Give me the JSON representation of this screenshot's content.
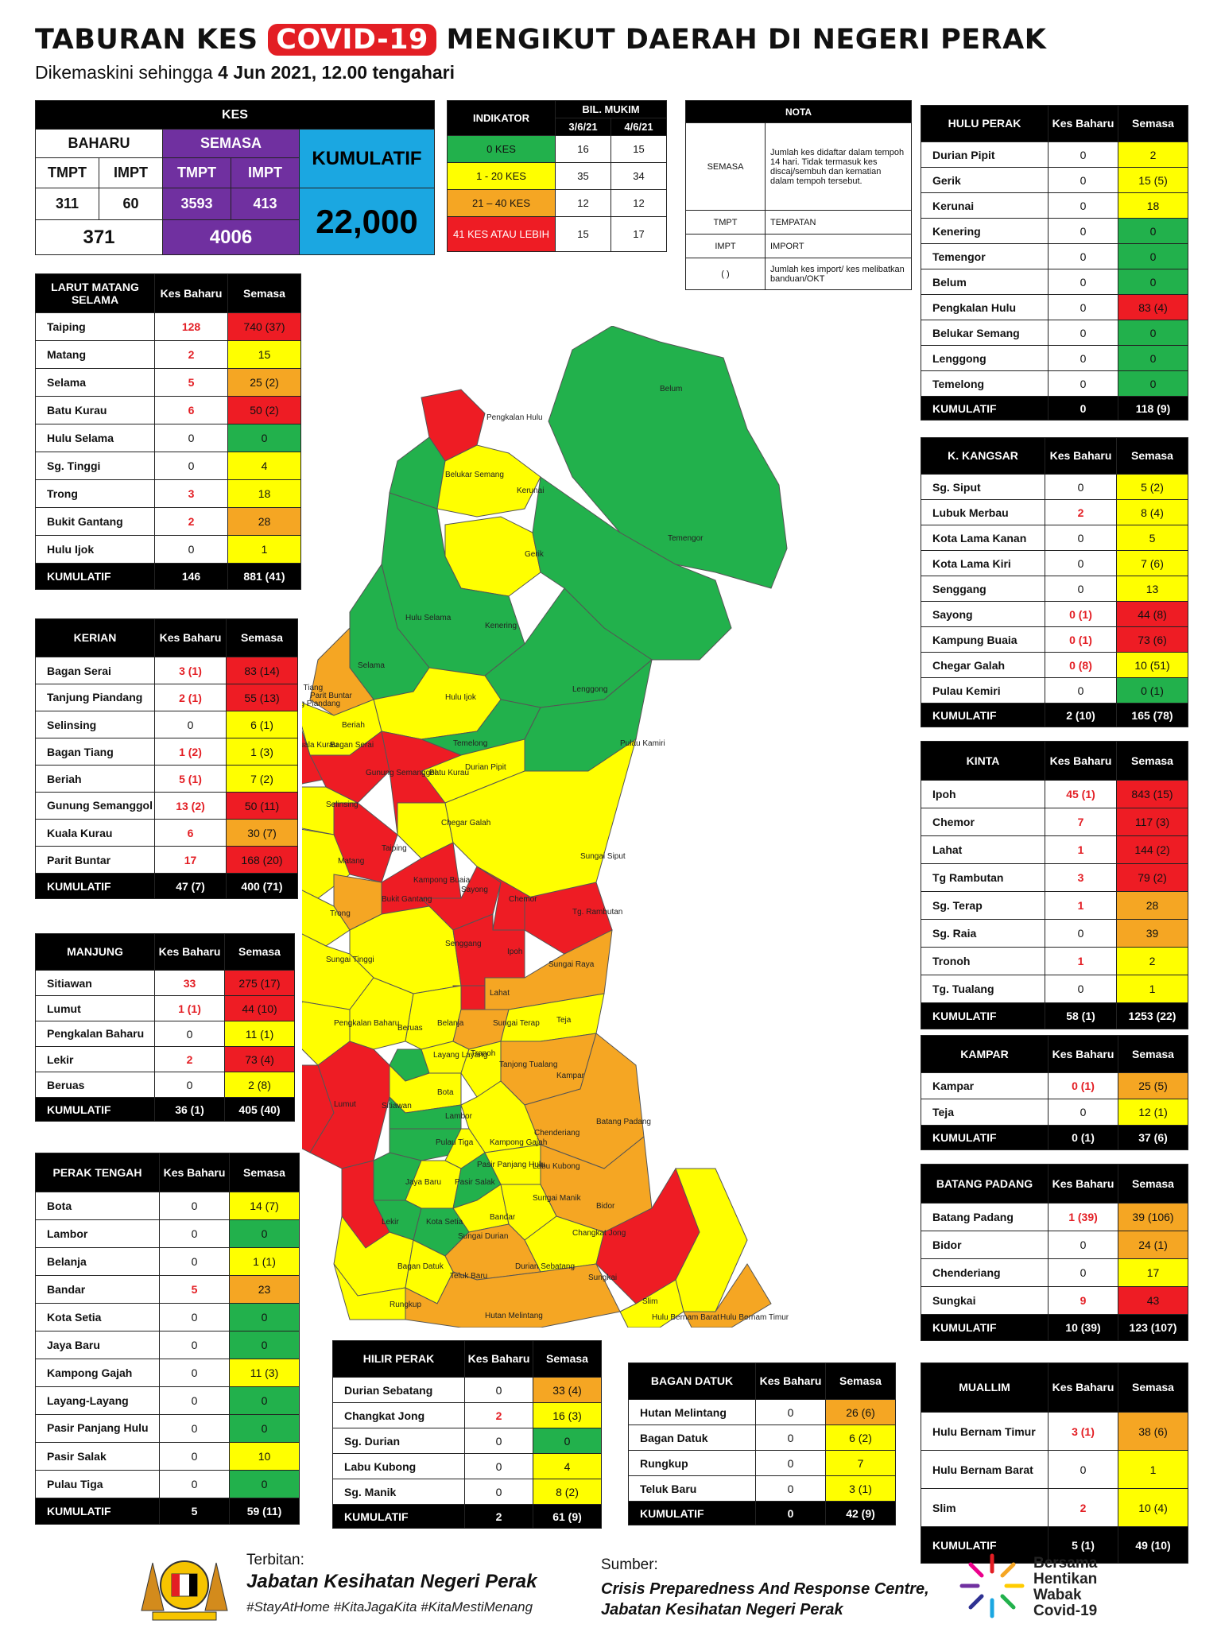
{
  "title": {
    "pre": "TABURAN KES ",
    "highlight": "COVID-19",
    "post": " MENGIKUT DAERAH DI NEGERI PERAK"
  },
  "subtitle": {
    "pre": "Dikemaskini sehingga ",
    "date": "4 Jun 2021, 12.00 tengahari"
  },
  "colors": {
    "green": "#22b14c",
    "yellow": "#ffff00",
    "orange": "#f5a623",
    "red": "#ee1c24",
    "purple": "#7030a0",
    "blue": "#1ba7e1"
  },
  "kes": {
    "title": "KES",
    "baharu": "BAHARU",
    "semasa": "SEMASA",
    "kumulatif_label": "KUMULATIF",
    "tmpt": "TMPT",
    "impt": "IMPT",
    "baharu_tmpt": "311",
    "baharu_impt": "60",
    "semasa_tmpt": "3593",
    "semasa_impt": "413",
    "baharu_total": "371",
    "semasa_total": "4006",
    "kumulatif": "22,000"
  },
  "indikator": {
    "title": "INDIKATOR",
    "bil": "BIL. MUKIM",
    "d1": "3/6/21",
    "d2": "4/6/21",
    "rows": [
      {
        "label": "0 KES",
        "a": "16",
        "b": "15"
      },
      {
        "label": "1 - 20 KES",
        "a": "35",
        "b": "34"
      },
      {
        "label": "21 – 40 KES",
        "a": "12",
        "b": "12"
      },
      {
        "label": "41 KES ATAU LEBIH",
        "a": "15",
        "b": "17"
      }
    ]
  },
  "nota": {
    "title": "NOTA",
    "rows": [
      {
        "k": "SEMASA",
        "v": "Jumlah kes didaftar dalam tempoh 14 hari. Tidak termasuk kes discaj/sembuh dan kematian dalam tempoh tersebut."
      },
      {
        "k": "TMPT",
        "v": "TEMPATAN"
      },
      {
        "k": "IMPT",
        "v": "IMPORT"
      },
      {
        "k": "( )",
        "v": "Jumlah kes import/ kes melibatkan banduan/OKT"
      }
    ]
  },
  "col": {
    "kes_baharu": "Kes Baharu",
    "semasa": "Semasa",
    "kumulatif": "KUMULATIF"
  },
  "districts": {
    "larut": {
      "name": "LARUT MATANG SELAMA",
      "rows": [
        {
          "n": "Taiping",
          "b": "128",
          "s": "740 (37)"
        },
        {
          "n": "Matang",
          "b": "2",
          "s": "15"
        },
        {
          "n": "Selama",
          "b": "5",
          "s": "25 (2)"
        },
        {
          "n": "Batu Kurau",
          "b": "6",
          "s": "50 (2)"
        },
        {
          "n": "Hulu Selama",
          "b": "0",
          "s": "0"
        },
        {
          "n": "Sg. Tinggi",
          "b": "0",
          "s": "4"
        },
        {
          "n": "Trong",
          "b": "3",
          "s": "18"
        },
        {
          "n": "Bukit Gantang",
          "b": "2",
          "s": "28"
        },
        {
          "n": "Hulu Ijok",
          "b": "0",
          "s": "1"
        }
      ],
      "kb": "146",
      "ks": "881 (41)"
    },
    "kerian": {
      "name": "KERIAN",
      "rows": [
        {
          "n": "Bagan Serai",
          "b": "3 (1)",
          "s": "83 (14)"
        },
        {
          "n": "Tanjung Piandang",
          "b": "2 (1)",
          "s": "55 (13)"
        },
        {
          "n": "Selinsing",
          "b": "0",
          "s": "6 (1)"
        },
        {
          "n": "Bagan Tiang",
          "b": "1 (2)",
          "s": "1 (3)"
        },
        {
          "n": "Beriah",
          "b": "5 (1)",
          "s": "7 (2)"
        },
        {
          "n": "Gunung Semanggol",
          "b": "13 (2)",
          "s": "50 (11)"
        },
        {
          "n": "Kuala Kurau",
          "b": "6",
          "s": "30 (7)"
        },
        {
          "n": "Parit Buntar",
          "b": "17",
          "s": "168 (20)"
        }
      ],
      "kb": "47 (7)",
      "ks": "400 (71)"
    },
    "manjung": {
      "name": "MANJUNG",
      "rows": [
        {
          "n": "Sitiawan",
          "b": "33",
          "s": "275 (17)"
        },
        {
          "n": "Lumut",
          "b": "1 (1)",
          "s": "44 (10)"
        },
        {
          "n": "Pengkalan Baharu",
          "b": "0",
          "s": "11 (1)"
        },
        {
          "n": "Lekir",
          "b": "2",
          "s": "73 (4)"
        },
        {
          "n": "Beruas",
          "b": "0",
          "s": "2 (8)"
        }
      ],
      "kb": "36 (1)",
      "ks": "405 (40)"
    },
    "perak_tengah": {
      "name": "PERAK TENGAH",
      "rows": [
        {
          "n": "Bota",
          "b": "0",
          "s": "14 (7)"
        },
        {
          "n": "Lambor",
          "b": "0",
          "s": "0"
        },
        {
          "n": "Belanja",
          "b": "0",
          "s": "1 (1)"
        },
        {
          "n": "Bandar",
          "b": "5",
          "s": "23"
        },
        {
          "n": "Kota Setia",
          "b": "0",
          "s": "0"
        },
        {
          "n": "Jaya Baru",
          "b": "0",
          "s": "0"
        },
        {
          "n": "Kampong Gajah",
          "b": "0",
          "s": "11 (3)"
        },
        {
          "n": "Layang-Layang",
          "b": "0",
          "s": "0"
        },
        {
          "n": "Pasir Panjang Hulu",
          "b": "0",
          "s": "0"
        },
        {
          "n": "Pasir Salak",
          "b": "0",
          "s": "10"
        },
        {
          "n": "Pulau Tiga",
          "b": "0",
          "s": "0"
        }
      ],
      "kb": "5",
      "ks": "59 (11)"
    },
    "hulu_perak": {
      "name": "HULU PERAK",
      "rows": [
        {
          "n": "Durian Pipit",
          "b": "0",
          "s": "2"
        },
        {
          "n": "Gerik",
          "b": "0",
          "s": "15 (5)"
        },
        {
          "n": "Kerunai",
          "b": "0",
          "s": "18"
        },
        {
          "n": "Kenering",
          "b": "0",
          "s": "0"
        },
        {
          "n": "Temengor",
          "b": "0",
          "s": "0"
        },
        {
          "n": "Belum",
          "b": "0",
          "s": "0"
        },
        {
          "n": "Pengkalan Hulu",
          "b": "0",
          "s": "83 (4)"
        },
        {
          "n": "Belukar Semang",
          "b": "0",
          "s": "0"
        },
        {
          "n": "Lenggong",
          "b": "0",
          "s": "0"
        },
        {
          "n": "Temelong",
          "b": "0",
          "s": "0"
        }
      ],
      "kb": "0",
      "ks": "118 (9)"
    },
    "kangsar": {
      "name": "K. KANGSAR",
      "rows": [
        {
          "n": "Sg. Siput",
          "b": "0",
          "s": "5 (2)"
        },
        {
          "n": "Lubuk Merbau",
          "b": "2",
          "s": "8 (4)"
        },
        {
          "n": "Kota Lama Kanan",
          "b": "0",
          "s": "5"
        },
        {
          "n": "Kota Lama Kiri",
          "b": "0",
          "s": "7 (6)"
        },
        {
          "n": "Senggang",
          "b": "0",
          "s": "13"
        },
        {
          "n": "Sayong",
          "b": "0 (1)",
          "s": "44 (8)"
        },
        {
          "n": "Kampung Buaia",
          "b": "0 (1)",
          "s": "73 (6)"
        },
        {
          "n": "Chegar Galah",
          "b": "0 (8)",
          "s": "10 (51)"
        },
        {
          "n": "Pulau Kemiri",
          "b": "0",
          "s": "0 (1)"
        }
      ],
      "kb": "2 (10)",
      "ks": "165 (78)"
    },
    "kinta": {
      "name": "KINTA",
      "rows": [
        {
          "n": "Ipoh",
          "b": "45 (1)",
          "s": "843 (15)"
        },
        {
          "n": "Chemor",
          "b": "7",
          "s": "117 (3)"
        },
        {
          "n": "Lahat",
          "b": "1",
          "s": "144 (2)"
        },
        {
          "n": "Tg Rambutan",
          "b": "3",
          "s": "79 (2)"
        },
        {
          "n": "Sg. Terap",
          "b": "1",
          "s": "28"
        },
        {
          "n": "Sg. Raia",
          "b": "0",
          "s": "39"
        },
        {
          "n": "Tronoh",
          "b": "1",
          "s": "2"
        },
        {
          "n": "Tg. Tualang",
          "b": "0",
          "s": "1"
        }
      ],
      "kb": "58 (1)",
      "ks": "1253 (22)"
    },
    "kampar": {
      "name": "KAMPAR",
      "rows": [
        {
          "n": "Kampar",
          "b": "0 (1)",
          "s": "25 (5)"
        },
        {
          "n": "Teja",
          "b": "0",
          "s": "12 (1)"
        }
      ],
      "kb": "0 (1)",
      "ks": "37 (6)"
    },
    "batang_padang": {
      "name": "BATANG PADANG",
      "rows": [
        {
          "n": "Batang Padang",
          "b": "1 (39)",
          "s": "39 (106)"
        },
        {
          "n": "Bidor",
          "b": "0",
          "s": "24 (1)"
        },
        {
          "n": "Chenderiang",
          "b": "0",
          "s": "17"
        },
        {
          "n": "Sungkai",
          "b": "9",
          "s": "43"
        }
      ],
      "kb": "10 (39)",
      "ks": "123 (107)"
    },
    "hilir_perak": {
      "name": "HILIR PERAK",
      "rows": [
        {
          "n": "Durian Sebatang",
          "b": "0",
          "s": "33 (4)"
        },
        {
          "n": "Changkat Jong",
          "b": "2",
          "s": "16 (3)"
        },
        {
          "n": "Sg. Durian",
          "b": "0",
          "s": "0"
        },
        {
          "n": "Labu Kubong",
          "b": "0",
          "s": "4"
        },
        {
          "n": "Sg. Manik",
          "b": "0",
          "s": "8 (2)"
        }
      ],
      "kb": "2",
      "ks": "61 (9)"
    },
    "bagan_datuk": {
      "name": "BAGAN DATUK",
      "rows": [
        {
          "n": "Hutan Melintang",
          "b": "0",
          "s": "26 (6)"
        },
        {
          "n": "Bagan Datuk",
          "b": "0",
          "s": "6 (2)"
        },
        {
          "n": "Rungkup",
          "b": "0",
          "s": "7"
        },
        {
          "n": "Teluk Baru",
          "b": "0",
          "s": "3 (1)"
        }
      ],
      "kb": "0",
      "ks": "42 (9)"
    },
    "muallim": {
      "name": "MUALLIM",
      "rows": [
        {
          "n": "Hulu Bernam Timur",
          "b": "3 (1)",
          "s": "38 (6)"
        },
        {
          "n": "Hulu Bernam Barat",
          "b": "0",
          "s": "1"
        },
        {
          "n": "Slim",
          "b": "2",
          "s": "10 (4)"
        }
      ],
      "kb": "5 (1)",
      "ks": "49 (10)"
    }
  },
  "map_labels": [
    "Belum",
    "Pengkalan Hulu",
    "Belukar Semang",
    "Kerunai",
    "Gerik",
    "Temengor",
    "Kenering",
    "Hulu Selama",
    "Selama",
    "Hulu Ijok",
    "Lenggong",
    "Bagan Tiang",
    "Parit Buntar",
    "Tanjung Piandang",
    "Beriah",
    "Kuala Kurau",
    "Bagan Serai",
    "Gunung Semanggol",
    "Batu Kurau",
    "Temelong",
    "Durian Pipit",
    "Pulau Kamiri",
    "Selinsing",
    "Chegar Galah",
    "Taiping",
    "Matang",
    "Sungai Siput",
    "Kampong Buaia",
    "Sayong",
    "Bukit Gantang",
    "Trong",
    "Chemor",
    "Tg. Rambutan",
    "Senggang",
    "Sungai Tinggi",
    "Ipoh",
    "Lahat",
    "Sungai Raya",
    "Pengkalan Baharu",
    "Beruas",
    "Belanja",
    "Sungai Terap",
    "Teja",
    "Layang Layang",
    "Tronoh",
    "Tanjong Tualang",
    "Bota",
    "Kampar",
    "Lumut",
    "Sitiawan",
    "Lambor",
    "Chenderiang",
    "Batang Padang",
    "Pulau Tiga",
    "Kampong Gajah",
    "Jaya Baru",
    "Pasir Salak",
    "Pasir Panjang Hulu",
    "Labu Kubong",
    "Bandar",
    "Bidor",
    "Lekir",
    "Kota Setia",
    "Sungai Manik",
    "Sungai Durian",
    "Changkat Jong",
    "Bagan Datuk",
    "Teluk Baru",
    "Durian Sebatang",
    "Sungkai",
    "Slim",
    "Rungkup",
    "Hutan Melintang",
    "Hulu Bernam Barat",
    "Hulu Bernam Timur"
  ],
  "footer": {
    "terbitan": "Terbitan:",
    "org": "Jabatan Kesihatan Negeri Perak",
    "tags": "#StayAtHome #KitaJagaKita #KitaMestiMenang",
    "sumber": "Sumber:",
    "src1": "Crisis Preparedness And Response Centre,",
    "src2": "Jabatan Kesihatan Negeri Perak",
    "bersama1": "Bersama",
    "bersama2": "Hentikan",
    "bersama3": "Wabak",
    "bersama4": "Covid-19"
  }
}
